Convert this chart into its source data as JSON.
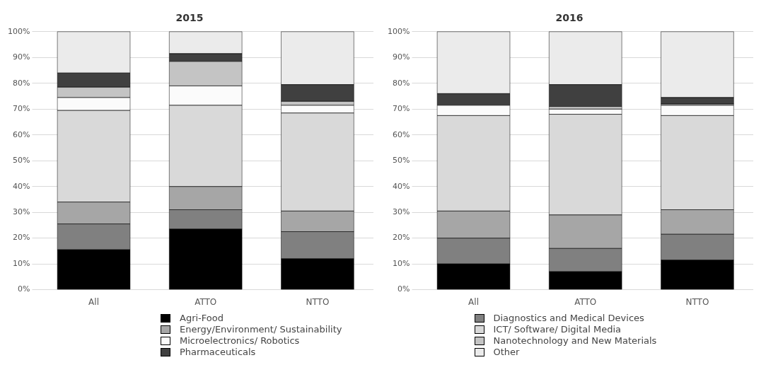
{
  "chart_data": [
    {
      "type": "bar",
      "title": "2015",
      "categories": [
        "All",
        "ATTO",
        "NTTO"
      ],
      "stacked": true,
      "grid": "y",
      "legend": "bottom",
      "ylim": [
        0,
        100
      ],
      "yticks": [
        {
          "value": 0,
          "label": "0%"
        },
        {
          "value": 10,
          "label": "10%"
        },
        {
          "value": 20,
          "label": "20%"
        },
        {
          "value": 30,
          "label": "30%"
        },
        {
          "value": 40,
          "label": "40%"
        },
        {
          "value": 50,
          "label": "50%"
        },
        {
          "value": 60,
          "label": "60%"
        },
        {
          "value": 70,
          "label": "70%"
        },
        {
          "value": 80,
          "label": "80%"
        },
        {
          "value": 90,
          "label": "90%"
        },
        {
          "value": 100,
          "label": "100%"
        }
      ],
      "series": [
        {
          "name": "Agri-Food",
          "color": "#000000",
          "values": [
            15.5,
            23.5,
            12
          ]
        },
        {
          "name": "Diagnostics and Medical Devices",
          "color": "#808080",
          "values": [
            10,
            7.5,
            10.5
          ]
        },
        {
          "name": "Energy/Environment/ Sustainability",
          "color": "#a6a6a6",
          "values": [
            8.5,
            9,
            8
          ]
        },
        {
          "name": "ICT/ Software/ Digital Media",
          "color": "#d9d9d9",
          "values": [
            35.5,
            31.5,
            38
          ]
        },
        {
          "name": "Microelectronics/ Robotics",
          "color": "#fbfbfb",
          "values": [
            5,
            7.5,
            3
          ]
        },
        {
          "name": "Nanotechnology and New Materials",
          "color": "#c4c4c4",
          "values": [
            4,
            9.5,
            1.5
          ]
        },
        {
          "name": "Pharmaceuticals",
          "color": "#404040",
          "values": [
            5.5,
            3,
            6.5
          ]
        },
        {
          "name": "Other",
          "color": "#ebebeb",
          "values": [
            16,
            8.5,
            20.5
          ]
        }
      ]
    },
    {
      "type": "bar",
      "title": "2016",
      "categories": [
        "All",
        "ATTO",
        "NTTO"
      ],
      "stacked": true,
      "grid": "y",
      "legend": "bottom",
      "ylim": [
        0,
        100
      ],
      "yticks": [
        {
          "value": 0,
          "label": "0%"
        },
        {
          "value": 10,
          "label": "10%"
        },
        {
          "value": 20,
          "label": "20%"
        },
        {
          "value": 30,
          "label": "30%"
        },
        {
          "value": 40,
          "label": "40%"
        },
        {
          "value": 50,
          "label": "50%"
        },
        {
          "value": 60,
          "label": "60%"
        },
        {
          "value": 70,
          "label": "70%"
        },
        {
          "value": 80,
          "label": "80%"
        },
        {
          "value": 90,
          "label": "90%"
        },
        {
          "value": 100,
          "label": "100%"
        }
      ],
      "series": [
        {
          "name": "Agri-Food",
          "color": "#000000",
          "values": [
            10,
            7,
            11.5
          ]
        },
        {
          "name": "Diagnostics and Medical Devices",
          "color": "#808080",
          "values": [
            10,
            9,
            10
          ]
        },
        {
          "name": "Energy/Environment/ Sustainability",
          "color": "#a6a6a6",
          "values": [
            10.5,
            13,
            9.5
          ]
        },
        {
          "name": "ICT/ Software/ Digital Media",
          "color": "#d9d9d9",
          "values": [
            37,
            39,
            36.5
          ]
        },
        {
          "name": "Microelectronics/ Robotics",
          "color": "#fbfbfb",
          "values": [
            4,
            2,
            4
          ]
        },
        {
          "name": "Nanotechnology and New Materials",
          "color": "#c4c4c4",
          "values": [
            0,
            1,
            0.5
          ]
        },
        {
          "name": "Pharmaceuticals",
          "color": "#404040",
          "values": [
            4.5,
            8.5,
            2.5
          ]
        },
        {
          "name": "Other",
          "color": "#ebebeb",
          "values": [
            24,
            20.5,
            25.5
          ]
        }
      ]
    }
  ]
}
